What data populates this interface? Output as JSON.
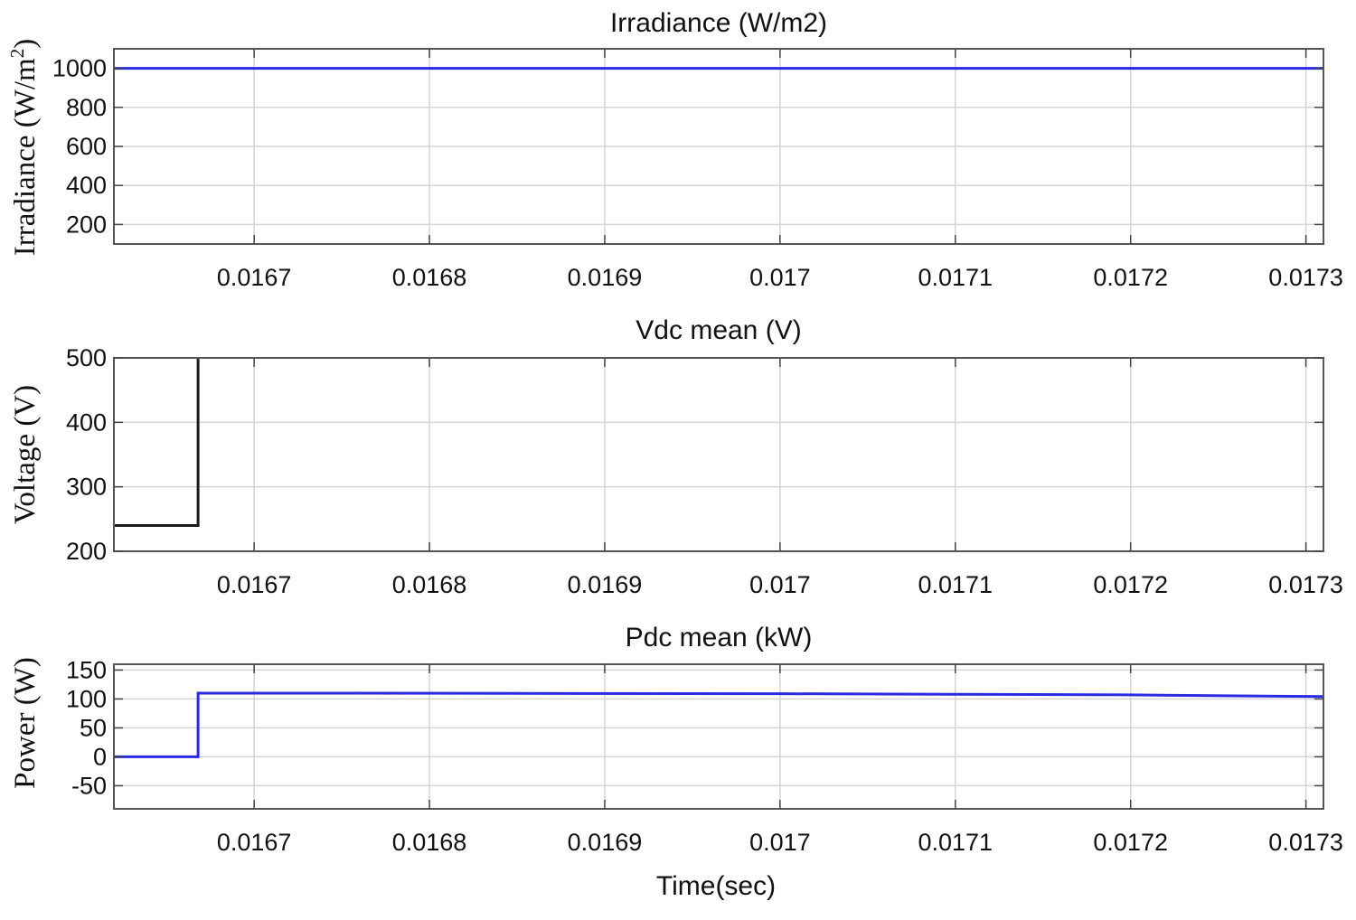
{
  "chart_data": [
    {
      "type": "line",
      "title": "Irradiance (W/m2)",
      "ylabel": "Irradiance (W/m",
      "ylabel_sup": "2",
      "ylabel_end": ")",
      "xlabel": "",
      "xlim": [
        0.01662,
        0.01731
      ],
      "ylim": [
        100,
        1100
      ],
      "yticks": [
        200,
        400,
        600,
        800,
        1000
      ],
      "ytick_labels": [
        "200",
        "400",
        "600",
        "800",
        "1000"
      ],
      "xticks": [
        0.0167,
        0.0168,
        0.0169,
        0.017,
        0.0171,
        0.0172,
        0.0173
      ],
      "xtick_labels": [
        "0.0167",
        "0.0168",
        "0.0169",
        "0.017",
        "0.0171",
        "0.0172",
        "0.0173"
      ],
      "grid": true,
      "series": [
        {
          "color": "#2a2ae0",
          "x": [
            0.01662,
            0.01731
          ],
          "y": [
            1000,
            1000
          ]
        }
      ]
    },
    {
      "type": "line",
      "title": "Vdc mean (V)",
      "ylabel": "Voltage (V)",
      "xlabel": "",
      "xlim": [
        0.01662,
        0.01731
      ],
      "ylim": [
        200,
        500
      ],
      "yticks": [
        200,
        300,
        400,
        500
      ],
      "ytick_labels": [
        "200",
        "300",
        "400",
        "500"
      ],
      "xticks": [
        0.0167,
        0.0168,
        0.0169,
        0.017,
        0.0171,
        0.0172,
        0.0173
      ],
      "xtick_labels": [
        "0.0167",
        "0.0168",
        "0.0169",
        "0.017",
        "0.0171",
        "0.0172",
        "0.0173"
      ],
      "grid": true,
      "series": [
        {
          "color": "#1a1a1a",
          "x": [
            0.01662,
            0.016668,
            0.016668
          ],
          "y": [
            240,
            240,
            500
          ]
        }
      ]
    },
    {
      "type": "line",
      "title": "Pdc mean (kW)",
      "ylabel": "Power (W)",
      "xlabel": "Time(sec)",
      "xlim": [
        0.01662,
        0.01731
      ],
      "ylim": [
        -90,
        160
      ],
      "yticks": [
        -50,
        0,
        50,
        100,
        150
      ],
      "ytick_labels": [
        "-50",
        "0",
        "50",
        "100",
        "150"
      ],
      "xticks": [
        0.0167,
        0.0168,
        0.0169,
        0.017,
        0.0171,
        0.0172,
        0.0173
      ],
      "xtick_labels": [
        "0.0167",
        "0.0168",
        "0.0169",
        "0.017",
        "0.0171",
        "0.0172",
        "0.0173"
      ],
      "grid": true,
      "series": [
        {
          "color": "#2a2ae0",
          "x": [
            0.01662,
            0.016668,
            0.016668,
            0.01675,
            0.017,
            0.0172,
            0.01731
          ],
          "y": [
            0,
            0,
            110,
            110,
            109,
            107,
            104
          ]
        }
      ]
    }
  ]
}
